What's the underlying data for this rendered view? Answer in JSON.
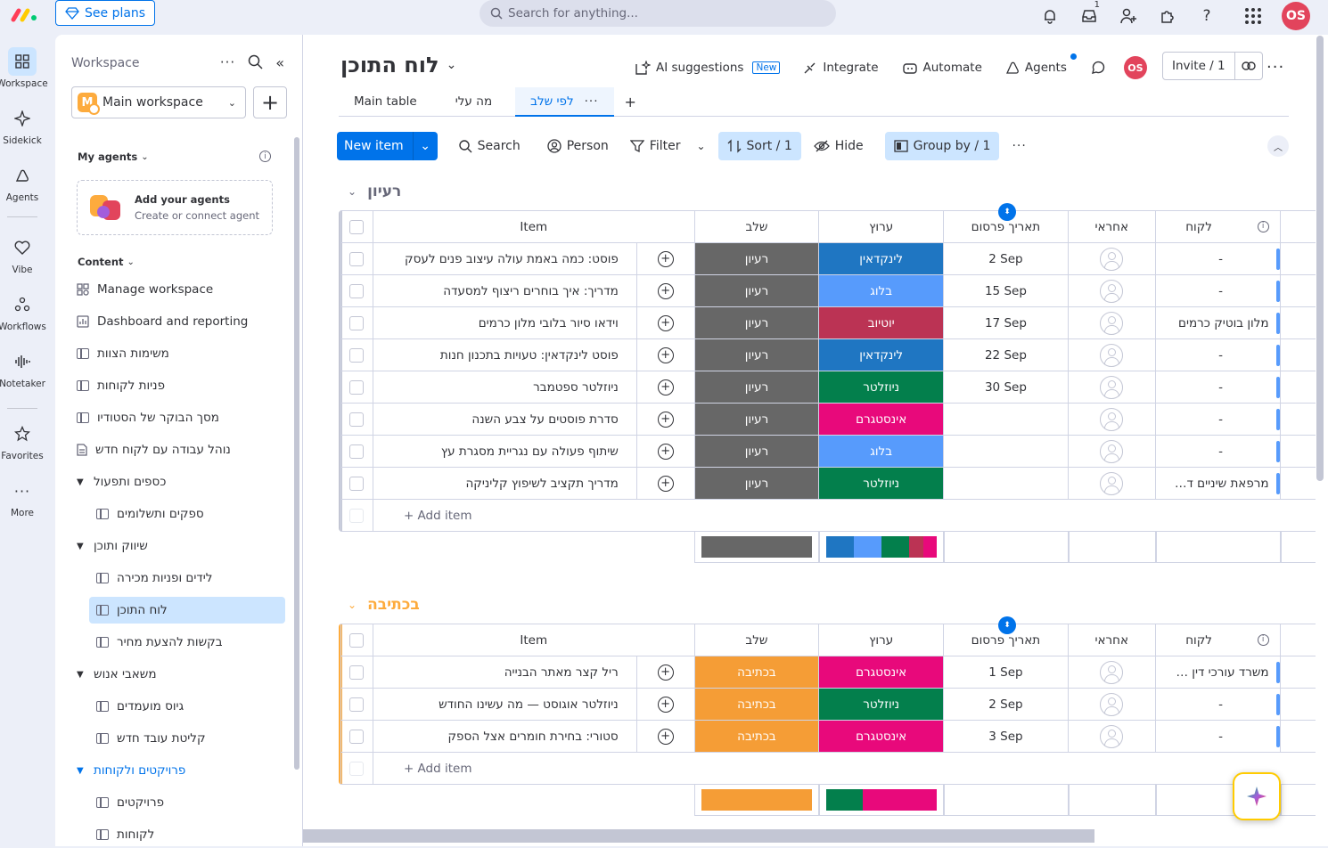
{
  "topbar": {
    "see_plans": "See plans",
    "search_placeholder": "Search for anything...",
    "inbox_count": "1",
    "avatar": "OS"
  },
  "rail": [
    {
      "label": "Workspace",
      "icon": "grid-icon"
    },
    {
      "label": "Sidekick",
      "icon": "sparkle-icon"
    },
    {
      "label": "Agents",
      "icon": "agent-icon"
    },
    {
      "label": "Vibe",
      "icon": "heart-icon"
    },
    {
      "label": "Workflows",
      "icon": "workflow-icon"
    },
    {
      "label": "Notetaker",
      "icon": "waveform-icon"
    },
    {
      "label": "Favorites",
      "icon": "star-icon"
    },
    {
      "label": "More",
      "icon": "more-icon"
    }
  ],
  "sidebar": {
    "title": "Workspace",
    "workspace_name": "Main workspace",
    "workspace_letter": "M",
    "my_agents": "My agents",
    "add_agents_title": "Add your agents",
    "add_agents_sub": "Create or connect agent",
    "content": "Content",
    "items": [
      "Manage workspace",
      "Dashboard and reporting",
      "משימות הצוות",
      "פניות לקוחות",
      "מסך הבוקר של הסטודיו",
      "נוהל עבודה עם לקוח חדש",
      "כספים ותפעול",
      "ספקים ותשלומים",
      "שיווק ותוכן",
      "לידים ופניות מכירה",
      "לוח התוכן",
      "בקשות להצעת מחיר",
      "משאבי אנוש",
      "גיוס מועמדים",
      "קליטת עובד חדש",
      "פרויקטים ולקוחות",
      "פרויקטים",
      "לקוחות"
    ]
  },
  "board": {
    "title": "לוח התוכן",
    "actions": {
      "ai": "AI suggestions",
      "new_tag": "New",
      "integrate": "Integrate",
      "automate": "Automate",
      "agents": "Agents",
      "invite": "Invite / 1"
    },
    "tabs": [
      "Main table",
      "מה עלי",
      "לפי שלב"
    ],
    "toolbar": {
      "new_item": "New item",
      "search": "Search",
      "person": "Person",
      "filter": "Filter",
      "sort": "Sort / 1",
      "hide": "Hide",
      "group_by": "Group by / 1"
    },
    "columns": {
      "item": "Item",
      "stage": "שלב",
      "channel": "ערוץ",
      "date": "תאריך פרסום",
      "owner": "אחראי",
      "customer": "לקוח"
    },
    "add_item": "+ Add item",
    "groups": [
      {
        "name": "רעיון",
        "color": "#c3c6d4",
        "rows": [
          {
            "item": "פוסט: כמה באמת עולה עיצוב פנים לעסק",
            "stage": "רעיון",
            "stage_color": "#676767",
            "channel": "לינקדאין",
            "channel_color": "#1f76c2",
            "date": "2 Sep",
            "customer": "-"
          },
          {
            "item": "מדריך: איך בוחרים ריצוף למסעדה",
            "stage": "רעיון",
            "stage_color": "#676767",
            "channel": "בלוג",
            "channel_color": "#579bfc",
            "date": "15 Sep",
            "customer": "-"
          },
          {
            "item": "וידאו סיור בלובי מלון כרמים",
            "stage": "רעיון",
            "stage_color": "#676767",
            "channel": "יוטיוב",
            "channel_color": "#bb3354",
            "date": "17 Sep",
            "customer": "מלון בוטיק כרמים"
          },
          {
            "item": "פוסט לינקדאין: טעויות בתכנון חנות",
            "stage": "רעיון",
            "stage_color": "#676767",
            "channel": "לינקדאין",
            "channel_color": "#1f76c2",
            "date": "22 Sep",
            "customer": "-"
          },
          {
            "item": "ניוזלטר ספטמבר",
            "stage": "רעיון",
            "stage_color": "#676767",
            "channel": "ניוזלטר",
            "channel_color": "#037f4c",
            "date": "30 Sep",
            "customer": "-"
          },
          {
            "item": "סדרת פוסטים על צבע השנה",
            "stage": "רעיון",
            "stage_color": "#676767",
            "channel": "אינסטגרם",
            "channel_color": "#e8097b",
            "date": "",
            "customer": "-"
          },
          {
            "item": "שיתוף פעולה עם נגריית מסגרת עץ",
            "stage": "רעיון",
            "stage_color": "#676767",
            "channel": "בלוג",
            "channel_color": "#579bfc",
            "date": "",
            "customer": "-"
          },
          {
            "item": "מדריך תקציב לשיפוץ קליניקה",
            "stage": "רעיון",
            "stage_color": "#676767",
            "channel": "ניוזלטר",
            "channel_color": "#037f4c",
            "date": "",
            "customer": "מרפאת שיניים ד\"ר ברנע"
          }
        ],
        "summary_stage": [
          {
            "color": "#676767",
            "share": 1
          }
        ],
        "summary_channel": [
          {
            "color": "#1f76c2",
            "share": 0.25
          },
          {
            "color": "#579bfc",
            "share": 0.25
          },
          {
            "color": "#037f4c",
            "share": 0.25
          },
          {
            "color": "#bb3354",
            "share": 0.125
          },
          {
            "color": "#e8097b",
            "share": 0.125
          }
        ]
      },
      {
        "name": "בכתיבה",
        "color": "#fdab3d",
        "rows": [
          {
            "item": "ריל קצר מאתר הבנייה",
            "stage": "בכתיבה",
            "stage_color": "#f59d36",
            "channel": "אינסטגרם",
            "channel_color": "#e8097b",
            "date": "1 Sep",
            "customer": "משרד עורכי דין שגב-לוי"
          },
          {
            "item": "ניוזלטר אוגוסט — מה עשינו החודש",
            "stage": "בכתיבה",
            "stage_color": "#f59d36",
            "channel": "ניוזלטר",
            "channel_color": "#037f4c",
            "date": "2 Sep",
            "customer": "-"
          },
          {
            "item": "סטורי: בחירת חומרים אצל הספק",
            "stage": "בכתיבה",
            "stage_color": "#f59d36",
            "channel": "אינסטגרם",
            "channel_color": "#e8097b",
            "date": "3 Sep",
            "customer": "-"
          }
        ],
        "summary_stage": [
          {
            "color": "#f59d36",
            "share": 1
          }
        ],
        "summary_channel": [
          {
            "color": "#037f4c",
            "share": 0.333
          },
          {
            "color": "#e8097b",
            "share": 0.667
          }
        ]
      }
    ]
  }
}
